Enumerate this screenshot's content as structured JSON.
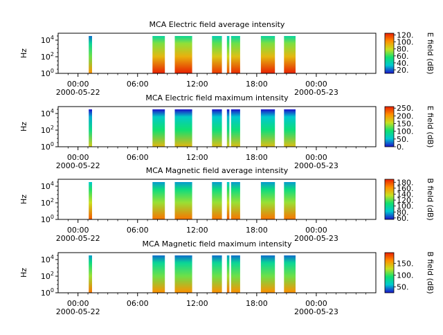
{
  "chart_data": [
    {
      "type": "heatmap",
      "title": "MCA  Electric field average intensity",
      "ylabel": "Hz",
      "y_scale": "log",
      "y_ticks": [
        "10^4",
        "10^2",
        "10^0"
      ],
      "x_ticks": [
        "00:00",
        "06:00",
        "12:00",
        "18:00",
        "00:00"
      ],
      "x_dates": [
        "2000-05-22",
        "2000-05-23"
      ],
      "colorbar": {
        "label": "E field (dB)",
        "ticks": [
          "120.",
          "100.",
          "80.",
          "60.",
          "40.",
          "20."
        ],
        "range": [
          10,
          125
        ]
      },
      "colors": [
        "#1c10c8",
        "#00c8d0",
        "#10e070",
        "#c8e020",
        "#ff9000",
        "#e82000"
      ],
      "data_blocks": [
        {
          "start": "01:05",
          "end": "01:25",
          "level": 0.5
        },
        {
          "start": "07:30",
          "end": "08:45",
          "level": 0.7
        },
        {
          "start": "09:45",
          "end": "11:30",
          "level": 0.72
        },
        {
          "start": "13:30",
          "end": "14:30",
          "level": 0.66
        },
        {
          "start": "15:00",
          "end": "15:15",
          "level": 0.62
        },
        {
          "start": "15:25",
          "end": "16:20",
          "level": 0.68
        },
        {
          "start": "18:25",
          "end": "19:50",
          "level": 0.7
        },
        {
          "start": "20:45",
          "end": "21:55",
          "level": 0.7
        }
      ]
    },
    {
      "type": "heatmap",
      "title": "MCA  Electric field maximum intensity",
      "ylabel": "Hz",
      "y_scale": "log",
      "y_ticks": [
        "10^4",
        "10^2",
        "10^0"
      ],
      "x_ticks": [
        "00:00",
        "06:00",
        "12:00",
        "18:00",
        "00:00"
      ],
      "x_dates": [
        "2000-05-22",
        "2000-05-23"
      ],
      "colorbar": {
        "label": "E field (dB)",
        "ticks": [
          "250.",
          "200.",
          "150.",
          "100.",
          "50.",
          "0."
        ],
        "range": [
          0,
          260
        ]
      },
      "colors": [
        "#1c10c8",
        "#00c8d0",
        "#10e070",
        "#c8e020",
        "#ff9000",
        "#e82000"
      ],
      "data_blocks": [
        {
          "start": "01:05",
          "end": "01:25",
          "level": 0.35
        },
        {
          "start": "07:30",
          "end": "08:45",
          "level": 0.4
        },
        {
          "start": "09:45",
          "end": "11:30",
          "level": 0.4
        },
        {
          "start": "13:30",
          "end": "14:30",
          "level": 0.38
        },
        {
          "start": "15:00",
          "end": "15:15",
          "level": 0.36
        },
        {
          "start": "15:25",
          "end": "16:20",
          "level": 0.38
        },
        {
          "start": "18:25",
          "end": "19:50",
          "level": 0.38
        },
        {
          "start": "20:45",
          "end": "21:55",
          "level": 0.38
        }
      ]
    },
    {
      "type": "heatmap",
      "title": "MCA  Magnetic field average intensity",
      "ylabel": "Hz",
      "y_scale": "log",
      "y_ticks": [
        "10^4",
        "10^2",
        "10^0"
      ],
      "x_ticks": [
        "00:00",
        "06:00",
        "12:00",
        "18:00",
        "00:00"
      ],
      "x_dates": [
        "2000-05-22",
        "2000-05-23"
      ],
      "colorbar": {
        "label": "B field (dB)",
        "ticks": [
          "180.",
          "160.",
          "140.",
          "120.",
          "100.",
          "80.",
          "60."
        ],
        "range": [
          55,
          190
        ]
      },
      "colors": [
        "#1c10c8",
        "#00c8d0",
        "#10e070",
        "#c8e020",
        "#ff9000",
        "#e82000"
      ],
      "data_blocks": [
        {
          "start": "01:05",
          "end": "01:25",
          "level": 0.6
        },
        {
          "start": "07:30",
          "end": "08:45",
          "level": 0.55
        },
        {
          "start": "09:45",
          "end": "11:30",
          "level": 0.55
        },
        {
          "start": "13:30",
          "end": "14:30",
          "level": 0.55
        },
        {
          "start": "15:00",
          "end": "15:15",
          "level": 0.6
        },
        {
          "start": "15:25",
          "end": "16:20",
          "level": 0.55
        },
        {
          "start": "18:25",
          "end": "19:50",
          "level": 0.55
        },
        {
          "start": "20:45",
          "end": "21:55",
          "level": 0.55
        }
      ]
    },
    {
      "type": "heatmap",
      "title": "MCA  Magnetic field maximum intensity",
      "ylabel": "Hz",
      "y_scale": "log",
      "y_ticks": [
        "10^4",
        "10^2",
        "10^0"
      ],
      "x_ticks": [
        "00:00",
        "06:00",
        "12:00",
        "18:00",
        "00:00"
      ],
      "x_dates": [
        "2000-05-22",
        "2000-05-23"
      ],
      "colorbar": {
        "label": "B field (dB)",
        "ticks": [
          "150.",
          "100.",
          "50."
        ],
        "range": [
          25,
          195
        ]
      },
      "colors": [
        "#1c10c8",
        "#00c8d0",
        "#10e070",
        "#c8e020",
        "#ff9000",
        "#e82000"
      ],
      "data_blocks": [
        {
          "start": "01:05",
          "end": "01:25",
          "level": 0.55
        },
        {
          "start": "07:30",
          "end": "08:45",
          "level": 0.5
        },
        {
          "start": "09:45",
          "end": "11:30",
          "level": 0.5
        },
        {
          "start": "13:30",
          "end": "14:30",
          "level": 0.5
        },
        {
          "start": "15:00",
          "end": "15:15",
          "level": 0.55
        },
        {
          "start": "15:25",
          "end": "16:20",
          "level": 0.5
        },
        {
          "start": "18:25",
          "end": "19:50",
          "level": 0.5
        },
        {
          "start": "20:45",
          "end": "21:55",
          "level": 0.5
        }
      ]
    }
  ]
}
